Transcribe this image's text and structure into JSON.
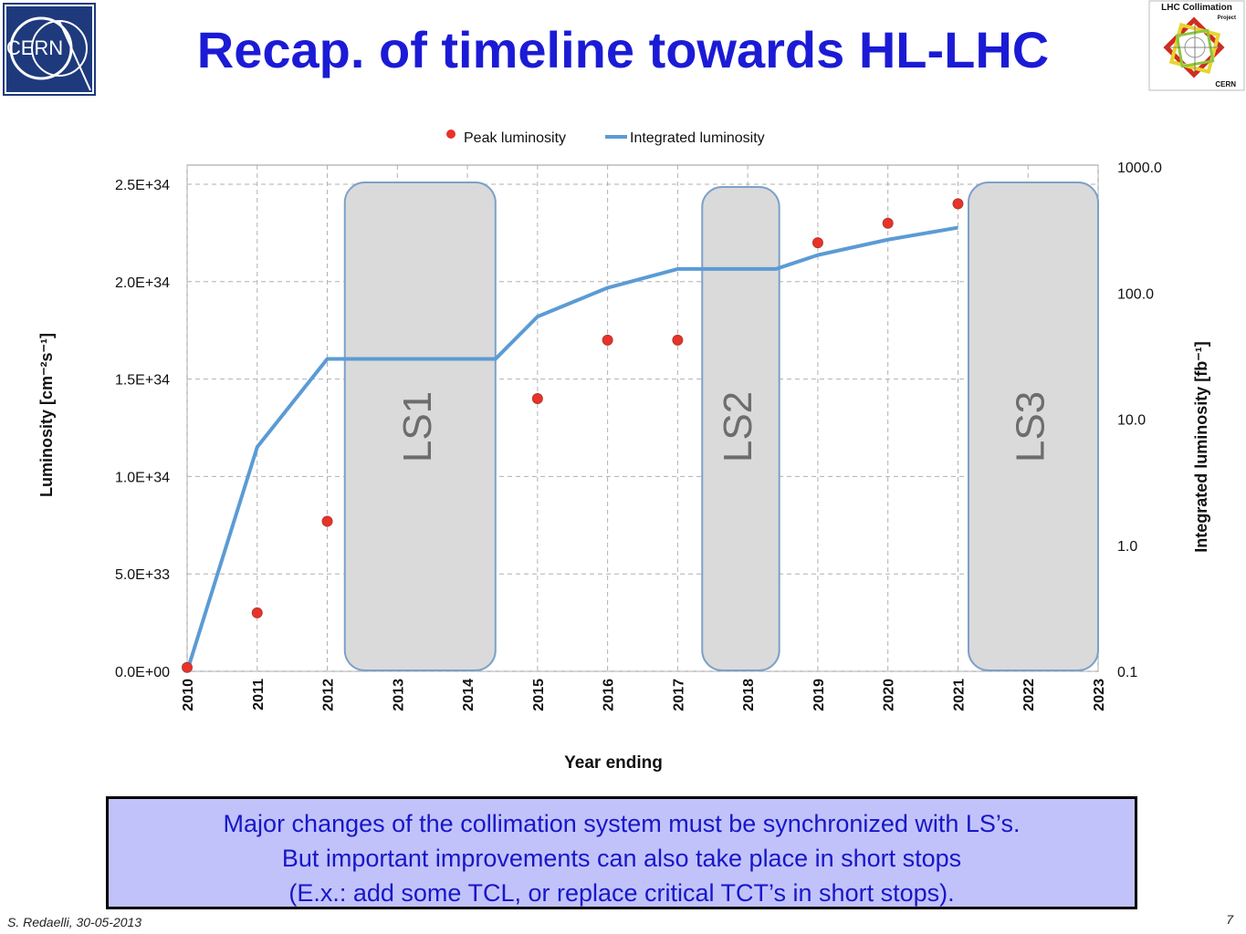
{
  "slide": {
    "title": "Recap. of timeline towards HL-LHC",
    "cern_logo_text": "CERN",
    "project_logo_line1": "LHC Collimation",
    "project_logo_line2": "Project",
    "project_logo_line3": "CERN",
    "note_lines": [
      "Major changes of the collimation system must be synchronized with LS’s.",
      "But important improvements can also take place in short stops",
      "(E.x.: add some TCL, or replace critical TCT’s in short stops)."
    ],
    "footer_author": "S. Redaelli, 30-05-2013",
    "page_number": "7"
  },
  "chart_data": {
    "type": "line",
    "xlabel": "Year ending",
    "ylabel_left": "Luminosity [cm⁻²s⁻¹]",
    "ylabel_right": "Integrated luminosity [fb⁻¹]",
    "x_ticks": [
      2010,
      2011,
      2012,
      2013,
      2014,
      2015,
      2016,
      2017,
      2018,
      2019,
      2020,
      2021,
      2022,
      2023
    ],
    "x_range": [
      2010,
      2023
    ],
    "y_left_range": [
      0,
      2.5e+34
    ],
    "y_left_ticks": [
      0,
      5e+33,
      1e+34,
      1.5e+34,
      2e+34,
      2.5e+34
    ],
    "y_left_tick_labels": [
      "0.0E+00",
      "5.0E+33",
      "1.0E+34",
      "1.5E+34",
      "2.0E+34",
      "2.5E+34"
    ],
    "y_right_scale": "log",
    "y_right_range": [
      0.1,
      1000
    ],
    "y_right_ticks": [
      0.1,
      1,
      10,
      100,
      1000
    ],
    "y_right_tick_labels": [
      "0.1",
      "1.0",
      "10.0",
      "100.0",
      "1000.0"
    ],
    "grid": true,
    "legend_position": "top",
    "series": [
      {
        "name": "Peak luminosity",
        "kind": "scatter",
        "axis": "left",
        "color": "#e8322a",
        "x": [
          2010,
          2011,
          2012,
          2015,
          2016,
          2017,
          2019,
          2020,
          2021
        ],
        "y": [
          2e+32,
          3e+33,
          7.7e+33,
          1.4e+34,
          1.7e+34,
          1.7e+34,
          2.2e+34,
          2.3e+34,
          2.4e+34
        ]
      },
      {
        "name": "Integrated luminosity",
        "kind": "line",
        "axis": "right",
        "color": "#5b9bd5",
        "x": [
          2010,
          2011,
          2012,
          2014.4,
          2015,
          2016,
          2017,
          2018.4,
          2019,
          2020,
          2021
        ],
        "y": [
          0.1,
          6,
          30,
          30,
          65,
          110,
          155,
          155,
          200,
          265,
          330
        ]
      }
    ],
    "shutdowns": [
      {
        "label": "LS1",
        "start": 2012.25,
        "end": 2014.4
      },
      {
        "label": "LS2",
        "start": 2017.35,
        "end": 2018.45
      },
      {
        "label": "LS3",
        "start": 2021.15,
        "end": 2023
      }
    ]
  }
}
